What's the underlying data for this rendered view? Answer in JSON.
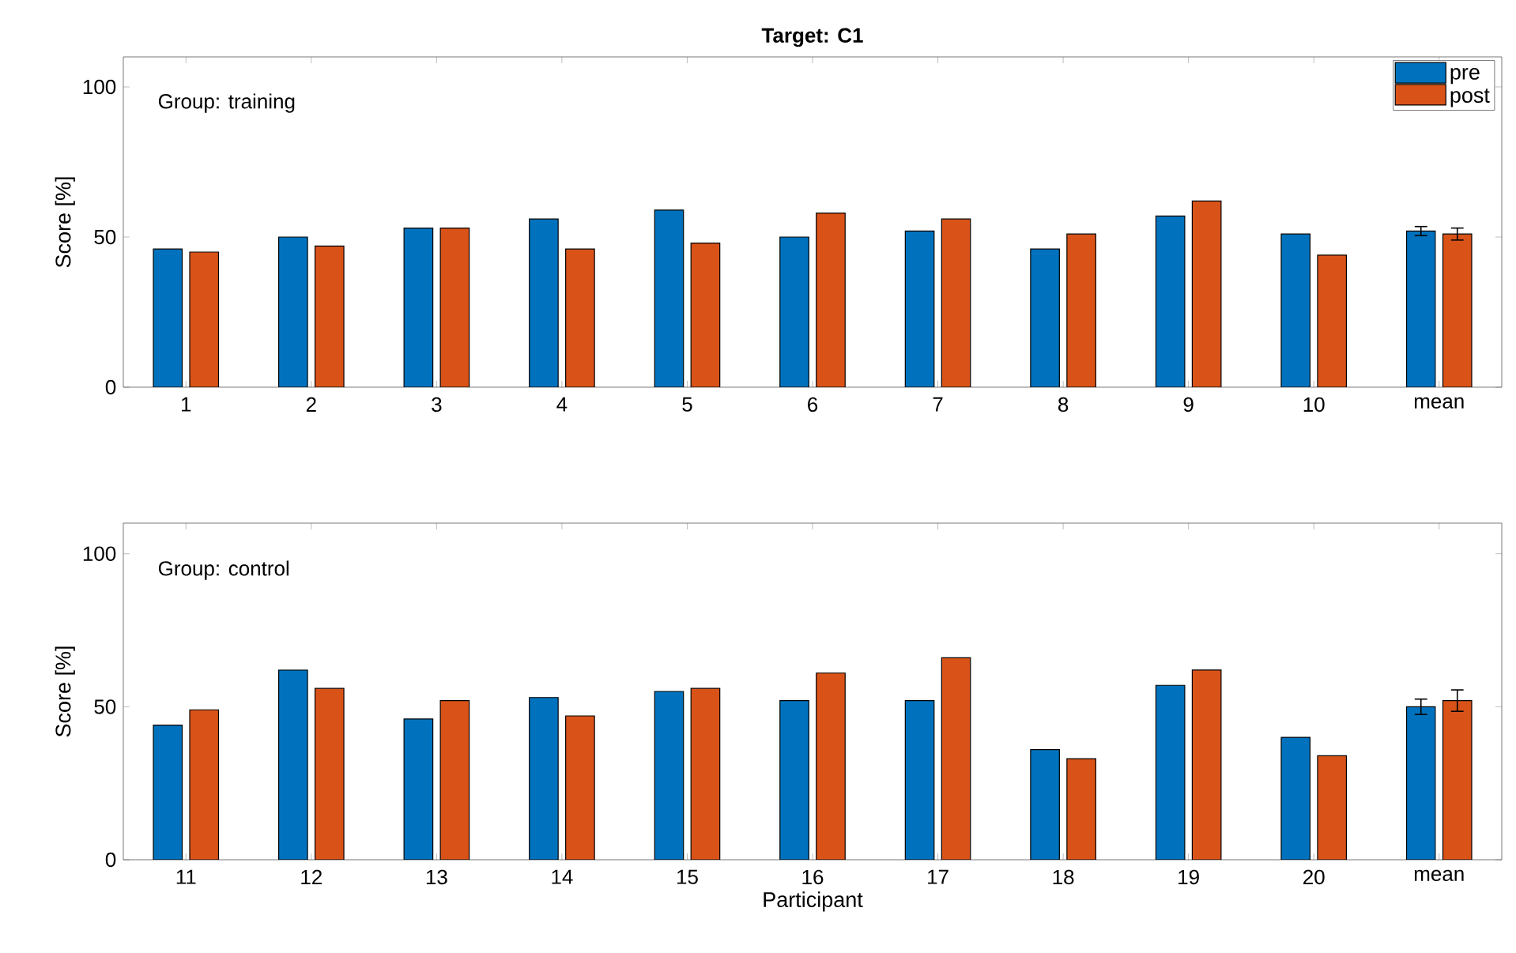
{
  "chart_data": [
    {
      "type": "bar",
      "title": "Target: C1",
      "ylabel": "Score [%]",
      "annotations": [
        "Group: training"
      ],
      "categories": [
        "1",
        "2",
        "3",
        "4",
        "5",
        "6",
        "7",
        "8",
        "9",
        "10",
        "mean"
      ],
      "series": [
        {
          "name": "pre",
          "color": "#0072bd",
          "values": [
            46,
            50,
            53,
            56,
            59,
            50,
            52,
            46,
            57,
            51,
            52
          ],
          "errors": [
            null,
            null,
            null,
            null,
            null,
            null,
            null,
            null,
            null,
            null,
            1.5
          ]
        },
        {
          "name": "post",
          "color": "#d95319",
          "values": [
            45,
            47,
            53,
            46,
            48,
            58,
            56,
            51,
            62,
            44,
            51
          ],
          "errors": [
            null,
            null,
            null,
            null,
            null,
            null,
            null,
            null,
            null,
            null,
            2
          ]
        }
      ],
      "ylim": [
        0,
        110
      ],
      "yticks": [
        0,
        50,
        100
      ],
      "legend": "top right",
      "grid": false
    },
    {
      "type": "bar",
      "xlabel": "Participant",
      "ylabel": "Score [%]",
      "annotations": [
        "Group: control"
      ],
      "categories": [
        "11",
        "12",
        "13",
        "14",
        "15",
        "16",
        "17",
        "18",
        "19",
        "20",
        "mean"
      ],
      "series": [
        {
          "color": "#0072bd",
          "values": [
            44,
            62,
            46,
            53,
            55,
            52,
            52,
            36,
            57,
            40,
            50
          ],
          "errors": [
            null,
            null,
            null,
            null,
            null,
            null,
            null,
            null,
            null,
            null,
            2.5
          ]
        },
        {
          "color": "#d95319",
          "values": [
            49,
            56,
            52,
            47,
            56,
            61,
            66,
            33,
            62,
            34,
            52
          ],
          "errors": [
            null,
            null,
            null,
            null,
            null,
            null,
            null,
            null,
            null,
            null,
            3.5
          ]
        }
      ],
      "ylim": [
        0,
        110
      ],
      "yticks": [
        0,
        50,
        100
      ],
      "legend": false,
      "grid": false
    }
  ]
}
